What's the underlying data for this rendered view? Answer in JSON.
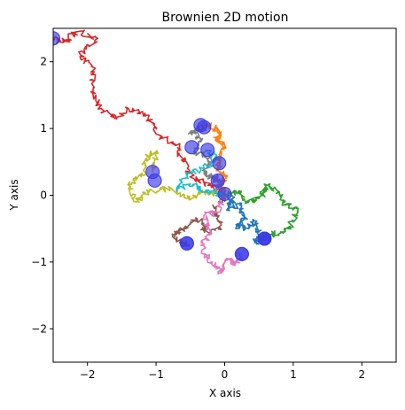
{
  "chart_data": {
    "type": "line",
    "title": "Brownien 2D motion",
    "xlabel": "X axis",
    "ylabel": "Y axis",
    "xlim": [
      -2.5,
      2.5
    ],
    "ylim": [
      -2.5,
      2.5
    ],
    "x_ticks": [
      -2,
      -1,
      0,
      1,
      2
    ],
    "y_ticks": [
      -2,
      -1,
      0,
      1,
      2
    ],
    "grid": false,
    "legend": "none",
    "marker_color": "#3a3ae6",
    "series": [
      {
        "color": "#1f77b4",
        "end": [
          0.58,
          -0.65
        ],
        "path": [
          [
            0,
            0
          ],
          [
            0.12,
            -0.08
          ],
          [
            0.05,
            -0.2
          ],
          [
            0.22,
            -0.15
          ],
          [
            0.3,
            -0.35
          ],
          [
            0.18,
            -0.45
          ],
          [
            0.35,
            -0.5
          ],
          [
            0.42,
            -0.38
          ],
          [
            0.5,
            -0.55
          ],
          [
            0.45,
            -0.7
          ],
          [
            0.58,
            -0.65
          ]
        ]
      },
      {
        "color": "#ff7f0e",
        "end": [
          -0.35,
          1.05
        ],
        "path": [
          [
            0,
            0
          ],
          [
            -0.05,
            0.15
          ],
          [
            0.02,
            0.3
          ],
          [
            -0.1,
            0.42
          ],
          [
            -0.05,
            0.6
          ],
          [
            0.0,
            0.75
          ],
          [
            -0.12,
            0.85
          ],
          [
            -0.05,
            0.95
          ],
          [
            -0.2,
            1.05
          ],
          [
            -0.35,
            1.05
          ]
        ]
      },
      {
        "color": "#2ca02c",
        "end": [
          0.58,
          -0.65
        ],
        "path": [
          [
            0,
            0
          ],
          [
            0.2,
            0.05
          ],
          [
            0.35,
            -0.1
          ],
          [
            0.5,
            -0.05
          ],
          [
            0.62,
            0.15
          ],
          [
            0.8,
            0.05
          ],
          [
            0.88,
            -0.15
          ],
          [
            1.05,
            -0.2
          ],
          [
            1.0,
            -0.4
          ],
          [
            0.85,
            -0.55
          ],
          [
            0.65,
            -0.6
          ],
          [
            0.58,
            -0.65
          ]
        ]
      },
      {
        "color": "#d62728",
        "end": [
          -2.5,
          2.35
        ],
        "path": [
          [
            0,
            0
          ],
          [
            -0.2,
            0.15
          ],
          [
            -0.45,
            0.25
          ],
          [
            -0.6,
            0.5
          ],
          [
            -0.7,
            0.75
          ],
          [
            -0.95,
            0.9
          ],
          [
            -1.15,
            1.2
          ],
          [
            -1.4,
            1.3
          ],
          [
            -1.6,
            1.15
          ],
          [
            -1.8,
            1.3
          ],
          [
            -1.95,
            1.55
          ],
          [
            -1.9,
            1.85
          ],
          [
            -2.1,
            2.1
          ],
          [
            -1.85,
            2.35
          ],
          [
            -2.15,
            2.45
          ],
          [
            -2.35,
            2.3
          ],
          [
            -2.5,
            2.35
          ]
        ]
      },
      {
        "color": "#9467bd",
        "end": [
          -0.1,
          0.22
        ],
        "path": [
          [
            0,
            0
          ],
          [
            -0.12,
            0.1
          ],
          [
            -0.05,
            0.2
          ],
          [
            -0.18,
            0.3
          ],
          [
            -0.1,
            0.22
          ]
        ]
      },
      {
        "color": "#8c564b",
        "end": [
          -0.55,
          -0.72
        ],
        "path": [
          [
            0,
            0
          ],
          [
            -0.15,
            -0.2
          ],
          [
            -0.05,
            -0.45
          ],
          [
            -0.25,
            -0.55
          ],
          [
            -0.4,
            -0.35
          ],
          [
            -0.6,
            -0.5
          ],
          [
            -0.75,
            -0.6
          ],
          [
            -0.6,
            -0.72
          ],
          [
            -0.55,
            -0.72
          ]
        ]
      },
      {
        "color": "#e377c2",
        "end": [
          0.25,
          -0.88
        ],
        "path": [
          [
            0,
            0
          ],
          [
            -0.1,
            -0.25
          ],
          [
            -0.3,
            -0.3
          ],
          [
            -0.2,
            -0.55
          ],
          [
            -0.35,
            -0.75
          ],
          [
            -0.2,
            -1.0
          ],
          [
            -0.05,
            -1.15
          ],
          [
            0.05,
            -0.95
          ],
          [
            0.15,
            -1.05
          ],
          [
            0.25,
            -0.88
          ]
        ]
      },
      {
        "color": "#7f7f7f",
        "end": [
          -0.3,
          1.02
        ],
        "path": [
          [
            0,
            0
          ],
          [
            -0.1,
            0.2
          ],
          [
            -0.3,
            0.35
          ],
          [
            -0.2,
            0.55
          ],
          [
            -0.45,
            0.65
          ],
          [
            -0.35,
            0.85
          ],
          [
            -0.5,
            0.95
          ],
          [
            -0.3,
            1.02
          ]
        ]
      },
      {
        "color": "#bcbd22",
        "end": [
          -1.05,
          0.35
        ],
        "path": [
          [
            0,
            0
          ],
          [
            -0.3,
            0.05
          ],
          [
            -0.55,
            -0.05
          ],
          [
            -0.8,
            0.1
          ],
          [
            -1.1,
            0.05
          ],
          [
            -1.3,
            -0.1
          ],
          [
            -1.4,
            0.15
          ],
          [
            -1.2,
            0.3
          ],
          [
            -1.15,
            0.55
          ],
          [
            -1.0,
            0.65
          ],
          [
            -1.05,
            0.35
          ]
        ]
      },
      {
        "color": "#17becf",
        "end": [
          -0.25,
          0.68
        ],
        "path": [
          [
            0,
            0
          ],
          [
            -0.25,
            0.05
          ],
          [
            -0.45,
            0.15
          ],
          [
            -0.7,
            0.1
          ],
          [
            -0.55,
            0.3
          ],
          [
            -0.3,
            0.4
          ],
          [
            -0.1,
            0.55
          ],
          [
            -0.25,
            0.68
          ]
        ]
      }
    ],
    "extra_markers": [
      [
        -1.02,
        0.22
      ],
      [
        -0.48,
        0.72
      ],
      [
        -0.08,
        0.48
      ],
      [
        0.0,
        0.02
      ],
      [
        0.25,
        -0.88
      ],
      [
        -0.55,
        -0.72
      ],
      [
        0.58,
        -0.65
      ]
    ]
  }
}
